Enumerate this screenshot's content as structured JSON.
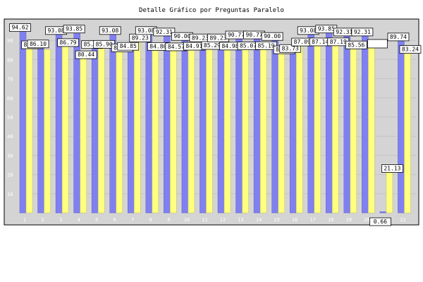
{
  "chart_data": {
    "type": "bar",
    "title": "Detalle Gráfico por Preguntas Paralelo",
    "categories": [
      "1",
      "2",
      "3",
      "4",
      "5",
      "6",
      "7",
      "8",
      "9",
      "10",
      "11",
      "12",
      "13",
      "14",
      "15",
      "16",
      "17",
      "18",
      "19",
      "20",
      "21",
      "22"
    ],
    "yticks": [
      "10",
      "20",
      "30",
      "40",
      "50",
      "60",
      "70",
      "80",
      "90"
    ],
    "ylim": [
      0,
      100
    ],
    "grid": true,
    "series": [
      {
        "color": "#8080f0",
        "values": [
          94.62,
          86.1,
          93.08,
          93.85,
          85.77,
          93.08,
          84.85,
          93.08,
          92.31,
          90.0,
          89.23,
          89.23,
          90.77,
          90.77,
          90.0,
          83.73,
          93.08,
          93.85,
          92.31,
          92.31,
          0.66,
          89.74
        ],
        "labels": [
          "94.62",
          "86.10",
          "93.08",
          "93.85",
          "85.77",
          "93.08",
          "84.85",
          "93.08",
          "92.31",
          "90.00",
          "89.23",
          "89.23",
          "90.77",
          "90.77",
          "90.00",
          "83.73",
          "93.08",
          "93.85",
          "92.31",
          "92.31",
          "0.66",
          "89.74"
        ]
      },
      {
        "color": "#ffff80",
        "values": [
          85.63,
          85.2,
          86.79,
          80.44,
          85.9,
          84.02,
          89.23,
          84.8,
          84.57,
          84.91,
          85.29,
          84.98,
          85.07,
          85.19,
          83.03,
          87.09,
          87.14,
          87.19,
          85.56,
          87.0,
          21.13,
          83.24
        ],
        "labels": [
          "85.63",
          "",
          "86.79",
          "80.44",
          "85.90",
          "84.02",
          "89.23",
          "84.80",
          "84.57",
          "84.91",
          "85.29",
          "84.98",
          "85.07",
          "85.19",
          "83.03",
          "87.09",
          "87.14",
          "87.19",
          "85.56",
          "",
          "21.13",
          "83.24"
        ]
      }
    ]
  },
  "colors": {
    "plot_bg": "#d4d4d4",
    "frame": "#000000"
  }
}
